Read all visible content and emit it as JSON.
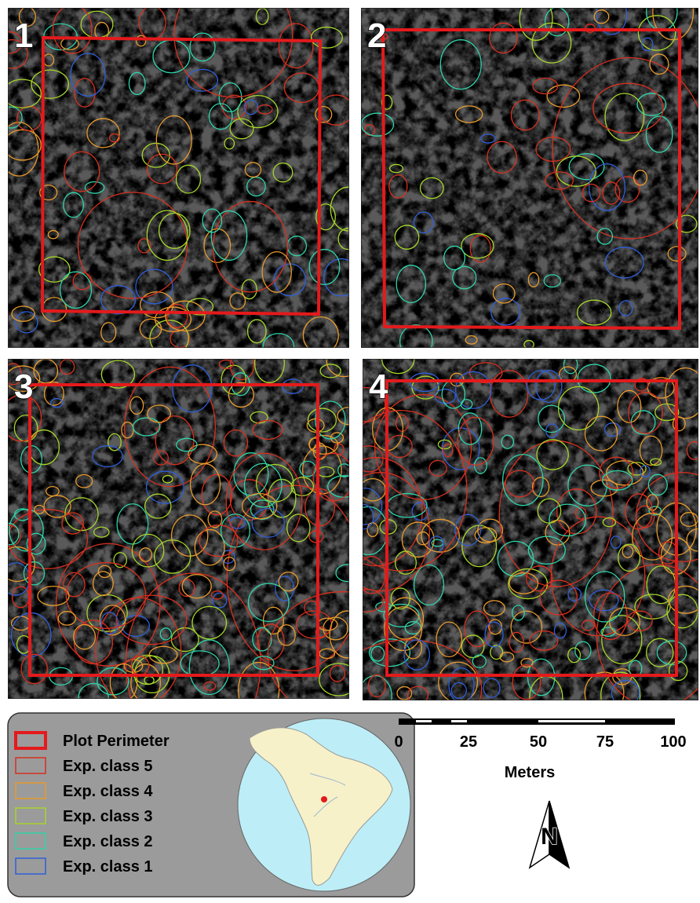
{
  "panels": [
    {
      "label": "1"
    },
    {
      "label": "2"
    },
    {
      "label": "3"
    },
    {
      "label": "4"
    }
  ],
  "legend": {
    "items": [
      "Plot Perimeter",
      "Exp. class 5",
      "Exp. class 4",
      "Exp. class 3",
      "Exp. class 2",
      "Exp. class 1"
    ]
  },
  "scale_bar": {
    "labels": [
      "0",
      "25",
      "50",
      "75",
      "100"
    ],
    "unit": "Meters"
  },
  "north_arrow": {
    "label": "N"
  }
}
